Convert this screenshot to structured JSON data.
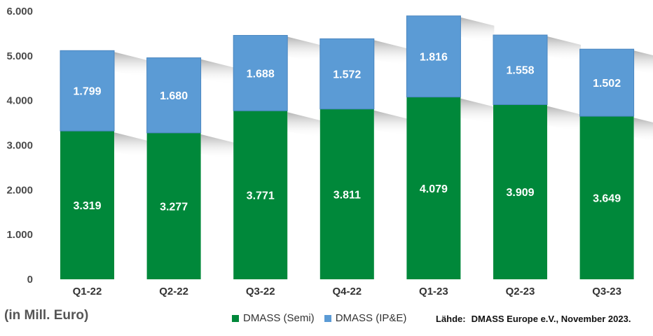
{
  "chart_data": {
    "type": "bar",
    "stacked": true,
    "categories": [
      "Q1-22",
      "Q2-22",
      "Q3-22",
      "Q4-22",
      "Q1-23",
      "Q2-23",
      "Q3-23"
    ],
    "series": [
      {
        "name": "DMASS (Semi)",
        "values": [
          3319,
          3277,
          3771,
          3811,
          4079,
          3909,
          3649
        ],
        "labels": [
          "3.319",
          "3.277",
          "3.771",
          "3.811",
          "4.079",
          "3.909",
          "3.649"
        ],
        "color": "#00883A"
      },
      {
        "name": "DMASS (IP&E)",
        "values": [
          1799,
          1680,
          1688,
          1572,
          1816,
          1558,
          1502
        ],
        "labels": [
          "1.799",
          "1.680",
          "1.688",
          "1.572",
          "1.816",
          "1.558",
          "1.502"
        ],
        "color": "#5B9BD5"
      }
    ],
    "ylim": [
      0,
      6000
    ],
    "yticks": [
      0,
      1000,
      2000,
      3000,
      4000,
      5000,
      6000
    ],
    "ytick_labels": [
      "0",
      "1.000",
      "2.000",
      "3.000",
      "4.000",
      "5.000",
      "6.000"
    ],
    "unit_label": "(in Mill. Euro)",
    "legend_position": "bottom",
    "grid": false
  },
  "source": {
    "label": "Lähde:",
    "text": "DMASS Europe e.V., November 2023."
  }
}
